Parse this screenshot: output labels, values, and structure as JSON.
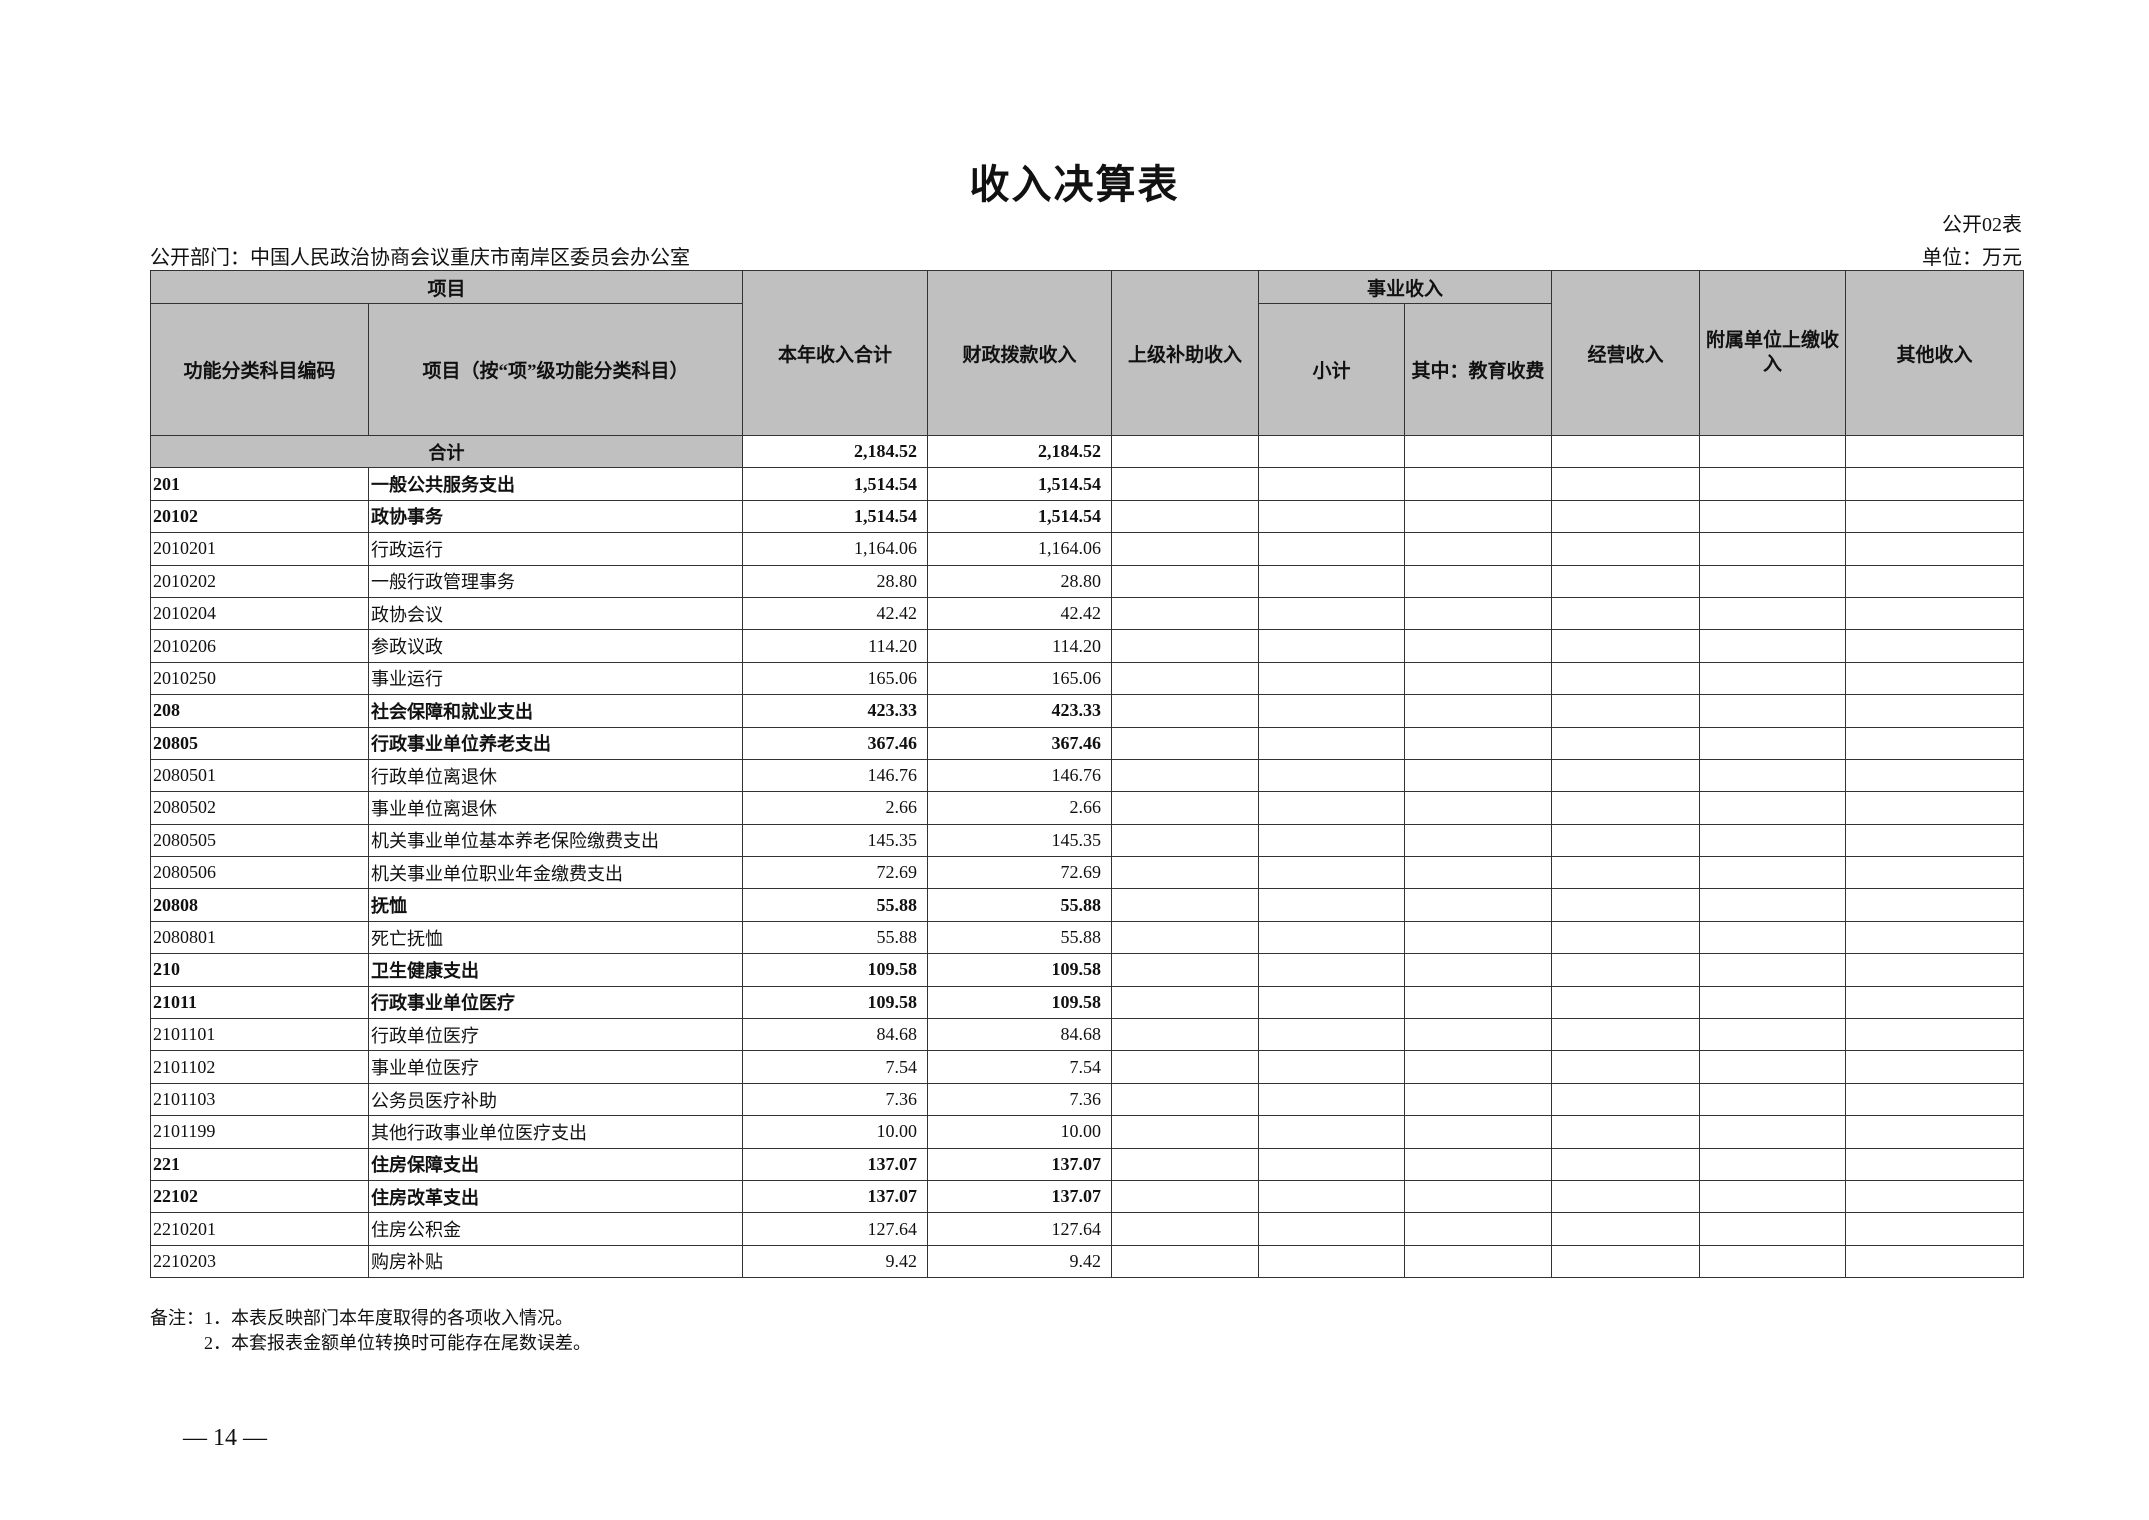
{
  "title": "收入决算表",
  "form_no": "公开02表",
  "department": "公开部门：中国人民政治协商会议重庆市南岸区委员会办公室",
  "unit": "单位：万元",
  "headers": {
    "project_group": "项目",
    "code": "功能分类科目编码",
    "name": "项目（按“项”级功能分类科目）",
    "total": "本年收入合计",
    "fiscal": "财政拨款收入",
    "superior": "上级补助收入",
    "business_group": "事业收入",
    "subtotal": "小计",
    "education": "其中：教育收费",
    "operating": "经营收入",
    "affiliated": "附属单位上缴收入",
    "other": "其他收入"
  },
  "total_row": {
    "label": "合计",
    "total": "2,184.52",
    "fiscal": "2,184.52"
  },
  "rows": [
    {
      "code": "201",
      "name": "一般公共服务支出",
      "total": "1,514.54",
      "fiscal": "1,514.54",
      "bold": true
    },
    {
      "code": "20102",
      "name": "政协事务",
      "total": "1,514.54",
      "fiscal": "1,514.54",
      "bold": true
    },
    {
      "code": "2010201",
      "name": "行政运行",
      "total": "1,164.06",
      "fiscal": "1,164.06",
      "bold": false
    },
    {
      "code": "2010202",
      "name": "一般行政管理事务",
      "total": "28.80",
      "fiscal": "28.80",
      "bold": false
    },
    {
      "code": "2010204",
      "name": "政协会议",
      "total": "42.42",
      "fiscal": "42.42",
      "bold": false
    },
    {
      "code": "2010206",
      "name": "参政议政",
      "total": "114.20",
      "fiscal": "114.20",
      "bold": false
    },
    {
      "code": "2010250",
      "name": "事业运行",
      "total": "165.06",
      "fiscal": "165.06",
      "bold": false
    },
    {
      "code": "208",
      "name": "社会保障和就业支出",
      "total": "423.33",
      "fiscal": "423.33",
      "bold": true
    },
    {
      "code": "20805",
      "name": "行政事业单位养老支出",
      "total": "367.46",
      "fiscal": "367.46",
      "bold": true
    },
    {
      "code": "2080501",
      "name": "行政单位离退休",
      "total": "146.76",
      "fiscal": "146.76",
      "bold": false
    },
    {
      "code": "2080502",
      "name": "事业单位离退休",
      "total": "2.66",
      "fiscal": "2.66",
      "bold": false
    },
    {
      "code": "2080505",
      "name": "机关事业单位基本养老保险缴费支出",
      "total": "145.35",
      "fiscal": "145.35",
      "bold": false
    },
    {
      "code": "2080506",
      "name": "机关事业单位职业年金缴费支出",
      "total": "72.69",
      "fiscal": "72.69",
      "bold": false
    },
    {
      "code": "20808",
      "name": "抚恤",
      "total": "55.88",
      "fiscal": "55.88",
      "bold": true
    },
    {
      "code": "2080801",
      "name": "死亡抚恤",
      "total": "55.88",
      "fiscal": "55.88",
      "bold": false
    },
    {
      "code": "210",
      "name": "卫生健康支出",
      "total": "109.58",
      "fiscal": "109.58",
      "bold": true
    },
    {
      "code": "21011",
      "name": "行政事业单位医疗",
      "total": "109.58",
      "fiscal": "109.58",
      "bold": true
    },
    {
      "code": "2101101",
      "name": "行政单位医疗",
      "total": "84.68",
      "fiscal": "84.68",
      "bold": false
    },
    {
      "code": "2101102",
      "name": "事业单位医疗",
      "total": "7.54",
      "fiscal": "7.54",
      "bold": false
    },
    {
      "code": "2101103",
      "name": "公务员医疗补助",
      "total": "7.36",
      "fiscal": "7.36",
      "bold": false
    },
    {
      "code": "2101199",
      "name": "其他行政事业单位医疗支出",
      "total": "10.00",
      "fiscal": "10.00",
      "bold": false
    },
    {
      "code": "221",
      "name": "住房保障支出",
      "total": "137.07",
      "fiscal": "137.07",
      "bold": true
    },
    {
      "code": "22102",
      "name": "住房改革支出",
      "total": "137.07",
      "fiscal": "137.07",
      "bold": true
    },
    {
      "code": "2210201",
      "name": "住房公积金",
      "total": "127.64",
      "fiscal": "127.64",
      "bold": false
    },
    {
      "code": "2210203",
      "name": "购房补贴",
      "total": "9.42",
      "fiscal": "9.42",
      "bold": false
    }
  ],
  "notes": [
    "备注：1．本表反映部门本年度取得的各项收入情况。",
    "2．本套报表金额单位转换时可能存在尾数误差。"
  ],
  "page_number": "— 14 —"
}
